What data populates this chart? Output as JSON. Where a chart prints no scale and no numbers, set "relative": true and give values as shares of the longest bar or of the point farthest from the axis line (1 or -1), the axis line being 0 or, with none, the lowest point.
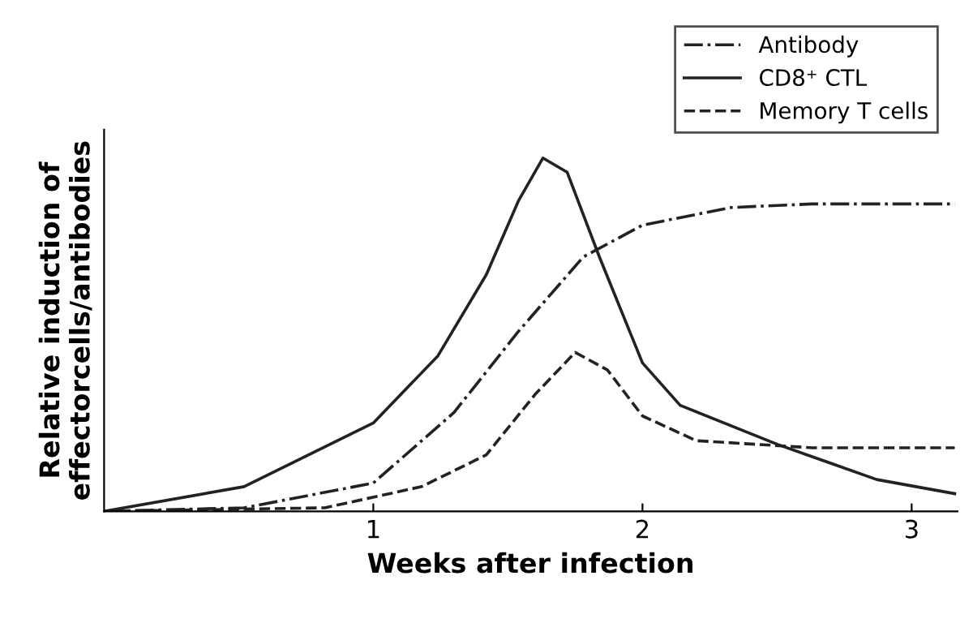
{
  "chart_data": {
    "type": "line",
    "relative": true,
    "xlabel": "Weeks after infection",
    "ylabel": "Relative induction of\neffectorcells/antibodies",
    "xlim": [
      0,
      3.17
    ],
    "xticks": [
      1,
      2,
      3
    ],
    "legend": "top right",
    "grid": false,
    "marker": "none",
    "series": [
      {
        "name": "Antibody",
        "color": "#222222",
        "line_style": "dashdot",
        "x": [
          0,
          0.52,
          1,
          1.3,
          1.54,
          1.78,
          2.0,
          2.33,
          2.63,
          3.16
        ],
        "values": [
          0,
          0.01,
          0.08,
          0.28,
          0.51,
          0.72,
          0.81,
          0.86,
          0.87,
          0.87
        ]
      },
      {
        "name": "CD8⁺ CTL",
        "color": "#222222",
        "line_style": "solid",
        "x": [
          0,
          0.52,
          1,
          1.24,
          1.42,
          1.54,
          1.63,
          1.72,
          1.84,
          2.0,
          2.14,
          2.5,
          2.87,
          3.16
        ],
        "values": [
          0,
          0.07,
          0.25,
          0.44,
          0.67,
          0.88,
          1.0,
          0.96,
          0.72,
          0.42,
          0.3,
          0.19,
          0.09,
          0.05
        ]
      },
      {
        "name": "Memory T cells",
        "color": "#222222",
        "line_style": "dashed",
        "x": [
          0,
          0.82,
          1.18,
          1.42,
          1.6,
          1.75,
          1.87,
          2.0,
          2.2,
          2.63,
          3.16
        ],
        "values": [
          0,
          0.01,
          0.07,
          0.16,
          0.33,
          0.45,
          0.4,
          0.27,
          0.2,
          0.18,
          0.18
        ]
      }
    ]
  }
}
